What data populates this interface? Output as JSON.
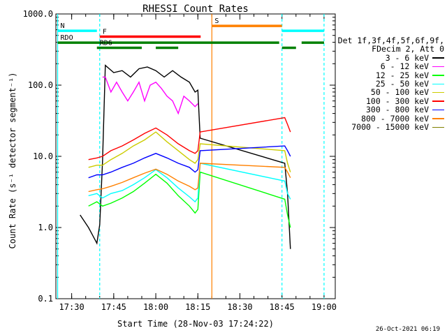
{
  "chart_data": {
    "type": "line",
    "title": "RHESSI Count Rates",
    "xlabel": "Start Time (28-Nov-03 17:24:22)",
    "ylabel": "Count Rate (s⁻¹ detector segment⁻¹)",
    "yscale": "log",
    "ylim": [
      0.1,
      1000
    ],
    "xlim": [
      "17:24:22",
      "19:04:00"
    ],
    "x_ticks": [
      "17:30",
      "17:45",
      "18:00",
      "18:15",
      "18:30",
      "18:45",
      "19:00"
    ],
    "y_ticks": [
      "0.1",
      "1.0",
      "10.0",
      "100.0",
      "1000.0"
    ],
    "grid": false,
    "legend_position": "right",
    "legend_header": [
      "Det 1f,3f,4f,5f,6f,9f,",
      "FDecim 2, Att 0"
    ],
    "series": [
      {
        "name": "3 - 6 keV",
        "color": "#000000",
        "x": [
          "17:33",
          "17:36",
          "17:39",
          "17:40",
          "17:41",
          "17:42",
          "17:45",
          "17:48",
          "17:51",
          "17:54",
          "17:57",
          "18:00",
          "18:03",
          "18:06",
          "18:09",
          "18:12",
          "18:14",
          "18:15",
          "18:15:50",
          "18:46",
          "18:47",
          "18:48"
        ],
        "y": [
          1.5,
          1.0,
          0.6,
          1.1,
          8.5,
          190,
          150,
          160,
          130,
          170,
          180,
          160,
          130,
          160,
          130,
          110,
          80,
          85,
          18,
          8,
          3,
          0.5
        ]
      },
      {
        "name": "6 - 12 keV",
        "color": "#ff00ff",
        "x": [
          "17:41",
          "17:42",
          "17:44",
          "17:46",
          "17:48",
          "17:50",
          "17:52",
          "17:54",
          "17:56",
          "17:58",
          "18:00",
          "18:02",
          "18:04",
          "18:06",
          "18:08",
          "18:10",
          "18:12",
          "18:14",
          "18:15"
        ],
        "y": [
          130,
          130,
          80,
          110,
          80,
          60,
          80,
          110,
          60,
          100,
          110,
          90,
          70,
          60,
          40,
          70,
          60,
          50,
          55
        ]
      },
      {
        "name": "12 - 25 keV",
        "color": "#00ff00",
        "x": [
          "17:36",
          "17:39",
          "17:41",
          "17:44",
          "17:48",
          "17:52",
          "17:56",
          "18:00",
          "18:04",
          "18:08",
          "18:12",
          "18:14",
          "18:15",
          "18:15:50",
          "18:46",
          "18:47",
          "18:48"
        ],
        "y": [
          2.0,
          2.3,
          2.0,
          2.2,
          2.6,
          3.2,
          4.2,
          5.6,
          4.2,
          2.8,
          2.0,
          1.6,
          1.8,
          6,
          2.5,
          1.5,
          1.0
        ]
      },
      {
        "name": "25 - 50 keV",
        "color": "#00ffff",
        "x": [
          "17:36",
          "17:39",
          "17:41",
          "17:44",
          "17:48",
          "17:52",
          "17:56",
          "18:00",
          "18:04",
          "18:08",
          "18:12",
          "18:14",
          "18:15",
          "18:15:50",
          "18:46",
          "18:47",
          "18:48"
        ],
        "y": [
          2.8,
          3.0,
          2.6,
          3.0,
          3.3,
          4.0,
          5.0,
          6.5,
          5.0,
          3.6,
          2.7,
          2.3,
          2.6,
          8,
          4.5,
          3,
          2.5
        ]
      },
      {
        "name": "50 - 100 keV",
        "color": "#cccc00",
        "x": [
          "17:36",
          "17:39",
          "17:41",
          "17:44",
          "17:48",
          "17:52",
          "17:56",
          "18:00",
          "18:04",
          "18:08",
          "18:12",
          "18:14",
          "18:15",
          "18:15:50",
          "18:46",
          "18:47",
          "18:48"
        ],
        "y": [
          7,
          7.5,
          7.5,
          9,
          11,
          14,
          17,
          22,
          16,
          12,
          9,
          8,
          9,
          15,
          12,
          8,
          6
        ]
      },
      {
        "name": "100 - 300 keV",
        "color": "#ff0000",
        "x": [
          "17:36",
          "17:39",
          "17:41",
          "17:44",
          "17:48",
          "17:52",
          "17:56",
          "18:00",
          "18:04",
          "18:08",
          "18:12",
          "18:14",
          "18:15",
          "18:15:50",
          "18:46",
          "18:47",
          "18:48"
        ],
        "y": [
          9,
          9.5,
          10,
          12,
          14,
          17,
          21,
          25,
          20,
          15,
          12,
          11,
          12,
          22,
          35,
          28,
          22
        ]
      },
      {
        "name": "300 - 800 keV",
        "color": "#0000ff",
        "x": [
          "17:36",
          "17:39",
          "17:41",
          "17:44",
          "17:48",
          "17:52",
          "17:56",
          "18:00",
          "18:04",
          "18:08",
          "18:12",
          "18:14",
          "18:15",
          "18:15:50",
          "18:46",
          "18:47",
          "18:48"
        ],
        "y": [
          5,
          5.5,
          5.5,
          6,
          7,
          8,
          9.5,
          11,
          9.5,
          8,
          7,
          6,
          6.5,
          12,
          14,
          12,
          10
        ]
      },
      {
        "name": "800 - 7000 keV",
        "color": "#ff8000",
        "x": [
          "17:36",
          "17:39",
          "17:41",
          "17:44",
          "17:48",
          "17:52",
          "17:56",
          "18:00",
          "18:04",
          "18:08",
          "18:12",
          "18:14",
          "18:15",
          "18:15:50",
          "18:46",
          "18:47",
          "18:48"
        ],
        "y": [
          3.2,
          3.4,
          3.5,
          3.8,
          4.3,
          5.0,
          5.8,
          6.6,
          5.6,
          4.5,
          3.8,
          3.4,
          3.6,
          8,
          7,
          6,
          5
        ]
      },
      {
        "name": "7000 - 15000 keV",
        "color": "#808000",
        "x": [],
        "y": []
      }
    ],
    "attenuator_states": [
      {
        "label": "N",
        "color": "#00ffff",
        "level": 580,
        "start": "17:25",
        "end": "17:39"
      },
      {
        "label": "",
        "color": "#00ffff",
        "level": 580,
        "start": "18:45",
        "end": "19:00"
      },
      {
        "label": "S",
        "color": "#ff8000",
        "level": 680,
        "start": "18:20",
        "end": "18:45"
      },
      {
        "label": "F",
        "color": "#ff0000",
        "level": 480,
        "start": "17:40",
        "end": "18:16"
      }
    ],
    "data_gaps": [
      {
        "label": "RDO",
        "color": "#008000",
        "level": 395,
        "start": "17:25",
        "end": "18:44"
      },
      {
        "label": "",
        "color": "#008000",
        "level": 395,
        "start": "18:52",
        "end": "19:00"
      },
      {
        "label": "RD6",
        "color": "#008000",
        "level": 335,
        "start": "17:39",
        "end": "17:55"
      },
      {
        "label": "",
        "color": "#008000",
        "level": 335,
        "start": "18:00",
        "end": "18:08"
      },
      {
        "label": "",
        "color": "#008000",
        "level": 335,
        "start": "18:45",
        "end": "18:50"
      }
    ],
    "vertical_markers": [
      {
        "x": "17:25",
        "color": "#00ffff",
        "style": "solid"
      },
      {
        "x": "17:40",
        "color": "#00ffff",
        "style": "dashed"
      },
      {
        "x": "18:20",
        "color": "#ff8000",
        "style": "solid"
      },
      {
        "x": "18:45",
        "color": "#00ffff",
        "style": "dashed"
      },
      {
        "x": "19:00",
        "color": "#00ffff",
        "style": "dashed"
      }
    ]
  },
  "timestamp": "26-Oct-2021 06:19"
}
